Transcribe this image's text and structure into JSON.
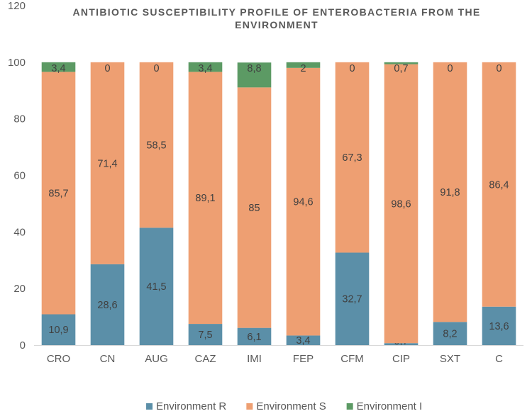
{
  "chart_data": {
    "type": "bar",
    "stacked": true,
    "title": "ANTIBIOTIC SUSCEPTIBILITY PROFILE OF ENTEROBACTERIA FROM THE ENVIRONMENT",
    "title_lines": [
      "ANTIBIOTIC SUSCEPTIBILITY PROFILE OF ENTEROBACTERIA FROM THE",
      "ENVIRONMENT"
    ],
    "xlabel": "",
    "ylabel": "",
    "ylim": [
      0,
      120
    ],
    "yticks": [
      0,
      20,
      40,
      60,
      80,
      100,
      120
    ],
    "grid": false,
    "legend_position": "bottom",
    "categories": [
      "CRO",
      "CN",
      "AUG",
      "CAZ",
      "IMI",
      "FEP",
      "CFM",
      "CIP",
      "SXT",
      "C"
    ],
    "series": [
      {
        "name": "Environment R",
        "color": "#5b8fa8",
        "values": [
          10.9,
          28.6,
          41.5,
          7.5,
          6.1,
          3.4,
          32.7,
          0.7,
          8.2,
          13.6
        ],
        "labels": [
          "10,9",
          "28,6",
          "41,5",
          "7,5",
          "6,1",
          "3,4",
          "32,7",
          "0,7",
          "8,2",
          "13,6"
        ]
      },
      {
        "name": "Environment S",
        "color": "#ee9f72",
        "values": [
          85.7,
          71.4,
          58.5,
          89.1,
          85,
          94.6,
          67.3,
          98.6,
          91.8,
          86.4
        ],
        "labels": [
          "85,7",
          "71,4",
          "58,5",
          "89,1",
          "85",
          "94,6",
          "67,3",
          "98,6",
          "91,8",
          "86,4"
        ]
      },
      {
        "name": "Environment I",
        "color": "#5c9a64",
        "values": [
          3.4,
          0,
          0,
          3.4,
          8.8,
          2,
          0,
          0.7,
          0,
          0
        ],
        "labels": [
          "3,4",
          "0",
          "0",
          "3,4",
          "8,8",
          "2",
          "0",
          "0,7",
          "0",
          "0"
        ]
      }
    ]
  }
}
